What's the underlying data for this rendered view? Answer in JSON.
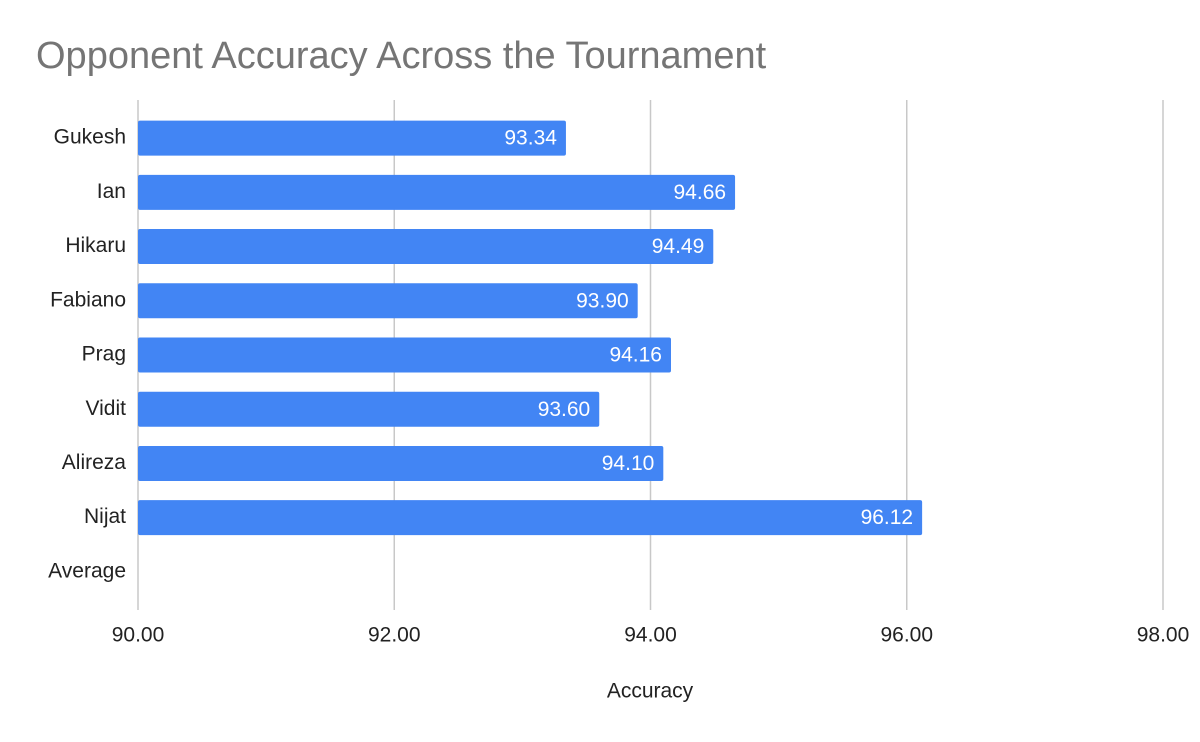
{
  "chart_data": {
    "type": "bar",
    "orientation": "horizontal",
    "title": "Opponent Accuracy Across the Tournament",
    "x_label": "Accuracy",
    "categories": [
      "Gukesh",
      "Ian",
      "Hikaru",
      "Fabiano",
      "Prag",
      "Vidit",
      "Alireza",
      "Nijat",
      "Average"
    ],
    "values": [
      93.34,
      94.66,
      94.49,
      93.9,
      94.16,
      93.6,
      94.1,
      96.12,
      null
    ],
    "value_labels": [
      "93.34",
      "94.66",
      "94.49",
      "93.90",
      "94.16",
      "93.60",
      "94.10",
      "96.12",
      null
    ],
    "color": "#4285f4",
    "xlim": [
      90,
      98
    ],
    "xticks": [
      {
        "value": 90,
        "label": "90.00"
      },
      {
        "value": 92,
        "label": "92.00"
      },
      {
        "value": 94,
        "label": "94.00"
      },
      {
        "value": 96,
        "label": "96.00"
      },
      {
        "value": 98,
        "label": "98.00"
      }
    ],
    "grid": true
  }
}
